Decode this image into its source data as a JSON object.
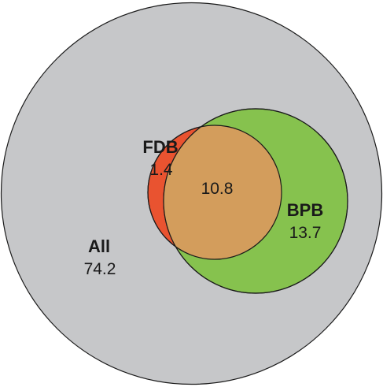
{
  "colors": {
    "all": "#c6c7c9",
    "fdb": "#e95330",
    "bpb": "#86c24e",
    "overlap": "#d39d5c",
    "stroke": "#1a1a1a"
  },
  "sets": {
    "all": {
      "name": "All",
      "value": "74.2"
    },
    "fdb": {
      "name": "FDB",
      "value": "1.4"
    },
    "bpb": {
      "name": "BPB",
      "value": "13.7"
    },
    "overlap": {
      "value": "10.8"
    }
  }
}
